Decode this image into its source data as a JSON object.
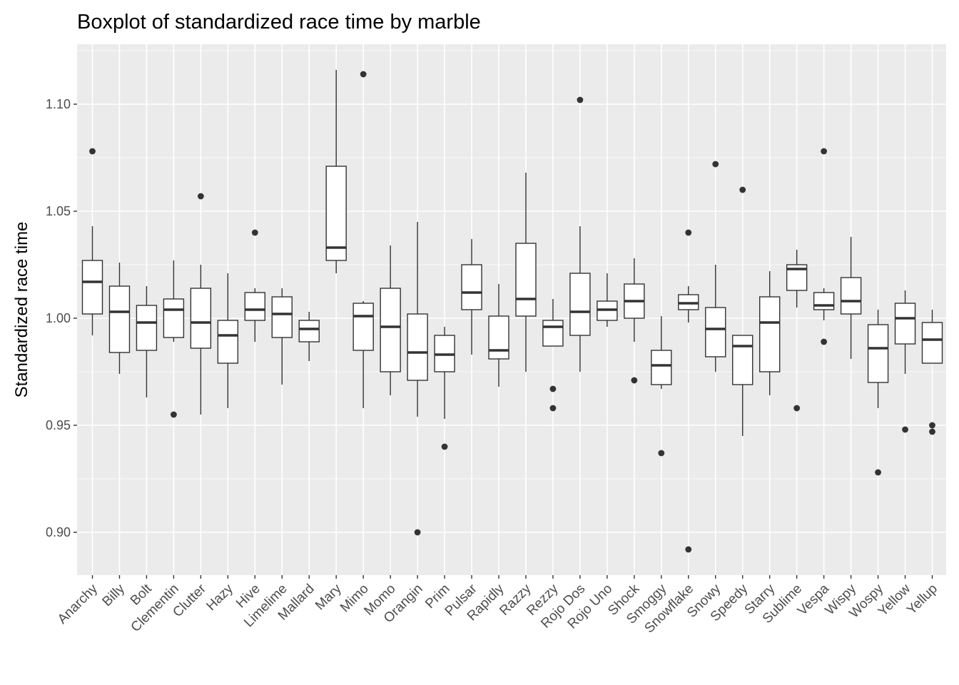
{
  "chart_data": {
    "type": "boxplot",
    "title": "Boxplot of standardized race time by marble",
    "xlabel": "",
    "ylabel": "Standardized race time",
    "ylim": [
      0.88,
      1.128
    ],
    "yticks": [
      0.9,
      0.95,
      1.0,
      1.05,
      1.1
    ],
    "ytick_labels": [
      "0.90",
      "0.95",
      "1.00",
      "1.05",
      "1.10"
    ],
    "grid": true,
    "background": "#ebebeb",
    "gridline_color": "#ffffff",
    "box_fill": "#ffffff",
    "box_stroke": "#333333",
    "categories": [
      "Anarchy",
      "Billy",
      "Bolt",
      "Clementin",
      "Clutter",
      "Hazy",
      "Hive",
      "Limelime",
      "Mallard",
      "Mary",
      "Mimo",
      "Momo",
      "Orangin",
      "Prim",
      "Pulsar",
      "Rapidly",
      "Razzy",
      "Rezzy",
      "Rojo Dos",
      "Rojo Uno",
      "Shock",
      "Smoggy",
      "Snowflake",
      "Snowy",
      "Speedy",
      "Starry",
      "Sublime",
      "Vespa",
      "Wispy",
      "Wospy",
      "Yellow",
      "Yellup"
    ],
    "boxes": [
      {
        "min": 0.992,
        "q1": 1.002,
        "median": 1.017,
        "q3": 1.027,
        "max": 1.043,
        "outliers": [
          1.078
        ]
      },
      {
        "min": 0.974,
        "q1": 0.984,
        "median": 1.003,
        "q3": 1.015,
        "max": 1.026,
        "outliers": []
      },
      {
        "min": 0.963,
        "q1": 0.985,
        "median": 0.998,
        "q3": 1.006,
        "max": 1.015,
        "outliers": []
      },
      {
        "min": 0.989,
        "q1": 0.991,
        "median": 1.004,
        "q3": 1.009,
        "max": 1.027,
        "outliers": [
          0.955
        ]
      },
      {
        "min": 0.955,
        "q1": 0.986,
        "median": 0.998,
        "q3": 1.014,
        "max": 1.025,
        "outliers": [
          1.057
        ]
      },
      {
        "min": 0.958,
        "q1": 0.979,
        "median": 0.992,
        "q3": 0.999,
        "max": 1.021,
        "outliers": []
      },
      {
        "min": 0.989,
        "q1": 0.999,
        "median": 1.004,
        "q3": 1.012,
        "max": 1.014,
        "outliers": [
          1.04
        ]
      },
      {
        "min": 0.969,
        "q1": 0.991,
        "median": 1.002,
        "q3": 1.01,
        "max": 1.014,
        "outliers": []
      },
      {
        "min": 0.98,
        "q1": 0.989,
        "median": 0.995,
        "q3": 0.999,
        "max": 1.003,
        "outliers": []
      },
      {
        "min": 1.021,
        "q1": 1.027,
        "median": 1.033,
        "q3": 1.071,
        "max": 1.116,
        "outliers": []
      },
      {
        "min": 0.958,
        "q1": 0.985,
        "median": 1.001,
        "q3": 1.007,
        "max": 1.008,
        "outliers": [
          1.114
        ]
      },
      {
        "min": 0.964,
        "q1": 0.975,
        "median": 0.996,
        "q3": 1.014,
        "max": 1.034,
        "outliers": []
      },
      {
        "min": 0.954,
        "q1": 0.971,
        "median": 0.984,
        "q3": 1.002,
        "max": 1.045,
        "outliers": [
          0.9
        ]
      },
      {
        "min": 0.953,
        "q1": 0.975,
        "median": 0.983,
        "q3": 0.992,
        "max": 0.996,
        "outliers": [
          0.94
        ]
      },
      {
        "min": 0.983,
        "q1": 1.004,
        "median": 1.012,
        "q3": 1.025,
        "max": 1.037,
        "outliers": []
      },
      {
        "min": 0.968,
        "q1": 0.981,
        "median": 0.985,
        "q3": 1.001,
        "max": 1.016,
        "outliers": []
      },
      {
        "min": 0.975,
        "q1": 1.001,
        "median": 1.009,
        "q3": 1.035,
        "max": 1.068,
        "outliers": []
      },
      {
        "min": 0.987,
        "q1": 0.987,
        "median": 0.996,
        "q3": 0.999,
        "max": 1.009,
        "outliers": [
          0.967,
          0.958
        ]
      },
      {
        "min": 0.975,
        "q1": 0.992,
        "median": 1.003,
        "q3": 1.021,
        "max": 1.043,
        "outliers": [
          1.102
        ]
      },
      {
        "min": 0.996,
        "q1": 0.999,
        "median": 1.004,
        "q3": 1.008,
        "max": 1.021,
        "outliers": []
      },
      {
        "min": 0.989,
        "q1": 1.0,
        "median": 1.008,
        "q3": 1.016,
        "max": 1.028,
        "outliers": [
          0.971
        ]
      },
      {
        "min": 0.967,
        "q1": 0.969,
        "median": 0.978,
        "q3": 0.985,
        "max": 1.001,
        "outliers": [
          0.937
        ]
      },
      {
        "min": 0.998,
        "q1": 1.004,
        "median": 1.007,
        "q3": 1.011,
        "max": 1.015,
        "outliers": [
          1.04,
          0.892
        ]
      },
      {
        "min": 0.975,
        "q1": 0.982,
        "median": 0.995,
        "q3": 1.005,
        "max": 1.025,
        "outliers": [
          1.072
        ]
      },
      {
        "min": 0.945,
        "q1": 0.969,
        "median": 0.987,
        "q3": 0.992,
        "max": 0.992,
        "outliers": [
          1.06
        ]
      },
      {
        "min": 0.964,
        "q1": 0.975,
        "median": 0.998,
        "q3": 1.01,
        "max": 1.022,
        "outliers": []
      },
      {
        "min": 1.005,
        "q1": 1.013,
        "median": 1.023,
        "q3": 1.025,
        "max": 1.032,
        "outliers": [
          0.958
        ]
      },
      {
        "min": 0.999,
        "q1": 1.004,
        "median": 1.006,
        "q3": 1.012,
        "max": 1.014,
        "outliers": [
          1.078,
          0.989
        ]
      },
      {
        "min": 0.981,
        "q1": 1.002,
        "median": 1.008,
        "q3": 1.019,
        "max": 1.038,
        "outliers": []
      },
      {
        "min": 0.958,
        "q1": 0.97,
        "median": 0.986,
        "q3": 0.997,
        "max": 1.004,
        "outliers": [
          0.928
        ]
      },
      {
        "min": 0.974,
        "q1": 0.988,
        "median": 1.0,
        "q3": 1.007,
        "max": 1.013,
        "outliers": [
          0.948
        ]
      },
      {
        "min": 0.979,
        "q1": 0.979,
        "median": 0.99,
        "q3": 0.998,
        "max": 1.004,
        "outliers": [
          0.95,
          0.947
        ]
      }
    ]
  }
}
